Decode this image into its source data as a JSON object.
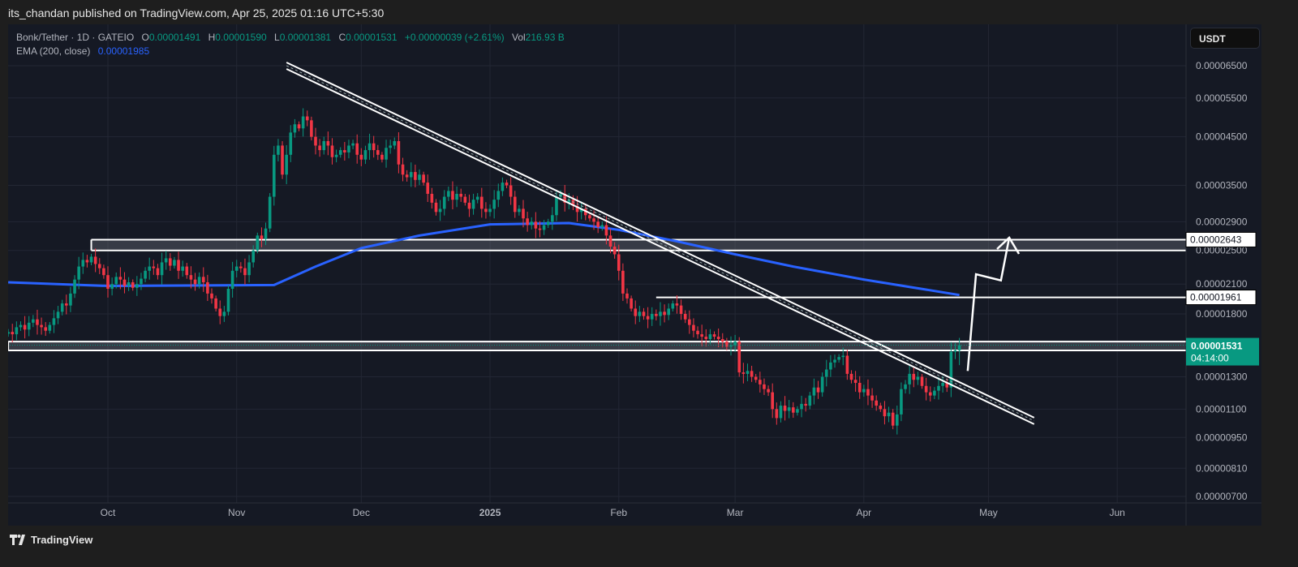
{
  "header": {
    "published": "its_chandan published on TradingView.com, Apr 25, 2025 01:16 UTC+5:30"
  },
  "legend": {
    "symbol": "Bonk/Tether · 1D · GATEIO",
    "o_label": "O",
    "o": "0.00001491",
    "h_label": "H",
    "h": "0.00001590",
    "l_label": "L",
    "l": "0.00001381",
    "c_label": "C",
    "c": "0.00001531",
    "change": "+0.00000039 (+2.61%)",
    "vol_label": "Vol",
    "vol": "216.93 B",
    "ema_label": "EMA (200, close)",
    "ema_value": "0.00001985"
  },
  "currency_button": "USDT",
  "footer": {
    "logo_text": "TradingView"
  },
  "colors": {
    "up": "#089981",
    "down": "#f23645",
    "ema": "#2962ff",
    "background": "#151924",
    "drawing": "#ffffff"
  },
  "chart_data": {
    "type": "candlestick",
    "title": "Bonk/Tether · 1D · GATEIO",
    "y_scale": "log",
    "ylim": [
      7e-06,
      6.75e-05
    ],
    "grid": true,
    "y_ticks": [
      "0.00006500",
      "0.00005500",
      "0.00004500",
      "0.00003500",
      "0.00002900",
      "0.00002500",
      "0.00002100",
      "0.00001800",
      "0.00001300",
      "0.00001100",
      "0.00000950",
      "0.00000810",
      "0.00000700"
    ],
    "x_ticks": [
      {
        "label": "Oct",
        "date": "2024-10-01"
      },
      {
        "label": "Nov",
        "date": "2024-11-01"
      },
      {
        "label": "Dec",
        "date": "2024-12-01"
      },
      {
        "label": "2025",
        "date": "2025-01-01",
        "bold": true
      },
      {
        "label": "Feb",
        "date": "2025-02-01"
      },
      {
        "label": "Mar",
        "date": "2025-03-01"
      },
      {
        "label": "Apr",
        "date": "2025-04-01"
      },
      {
        "label": "May",
        "date": "2025-05-01"
      },
      {
        "label": "Jun",
        "date": "2025-06-01"
      }
    ],
    "first_candle_date": "2024-09-07",
    "interval": "1D",
    "closes": [
      1.64e-05,
      1.62e-05,
      1.68e-05,
      1.7e-05,
      1.66e-05,
      1.72e-05,
      1.75e-05,
      1.7e-05,
      1.68e-05,
      1.65e-05,
      1.7e-05,
      1.76e-05,
      1.82e-05,
      1.9e-05,
      1.88e-05,
      2e-05,
      2.15e-05,
      2.3e-05,
      2.38e-05,
      2.35e-05,
      2.42e-05,
      2.33e-05,
      2.28e-05,
      2.2e-05,
      2.05e-05,
      2.1e-05,
      2.18e-05,
      2.15e-05,
      2.08e-05,
      2.12e-05,
      2.06e-05,
      2.1e-05,
      2.16e-05,
      2.25e-05,
      2.3e-05,
      2.28e-05,
      2.2e-05,
      2.35e-05,
      2.4e-05,
      2.31e-05,
      2.38e-05,
      2.25e-05,
      2.3e-05,
      2.2e-05,
      2.15e-05,
      2.1e-05,
      2.18e-05,
      2.12e-05,
      2e-05,
      1.95e-05,
      1.85e-05,
      1.78e-05,
      1.82e-05,
      2.05e-05,
      2.25e-05,
      2.3e-05,
      2.28e-05,
      2.2e-05,
      2.35e-05,
      2.5e-05,
      2.7e-05,
      2.65e-05,
      2.8e-05,
      3.3e-05,
      4.1e-05,
      4.3e-05,
      3.7e-05,
      4.1e-05,
      4.6e-05,
      4.8e-05,
      4.7e-05,
      5e-05,
      4.9e-05,
      4.5e-05,
      4.3e-05,
      4.2e-05,
      4.4e-05,
      4.3e-05,
      4.05e-05,
      4.1e-05,
      4.2e-05,
      4.15e-05,
      4.3e-05,
      4.35e-05,
      4.1e-05,
      4e-05,
      4.2e-05,
      4.35e-05,
      4.2e-05,
      4.1e-05,
      4e-05,
      4.25e-05,
      4.3e-05,
      4.4e-05,
      3.9e-05,
      3.7e-05,
      3.65e-05,
      3.75e-05,
      3.6e-05,
      3.7e-05,
      3.55e-05,
      3.35e-05,
      3.2e-05,
      3.05e-05,
      3.1e-05,
      3.3e-05,
      3.4e-05,
      3.25e-05,
      3.35e-05,
      3.3e-05,
      3.2e-05,
      3.1e-05,
      3.25e-05,
      3.3e-05,
      3.1e-05,
      3.05e-05,
      3.1e-05,
      3.25e-05,
      3.4e-05,
      3.55e-05,
      3.5e-05,
      3.3e-05,
      3.05e-05,
      3.1e-05,
      2.95e-05,
      2.85e-05,
      2.9e-05,
      2.8e-05,
      2.78e-05,
      2.85e-05,
      2.9e-05,
      3e-05,
      3.3e-05,
      3.35e-05,
      3.2e-05,
      3.25e-05,
      3.15e-05,
      3.05e-05,
      3.1e-05,
      3e-05,
      2.95e-05,
      2.9e-05,
      2.82e-05,
      2.85e-05,
      2.7e-05,
      2.55e-05,
      2.45e-05,
      2.25e-05,
      2e-05,
      1.95e-05,
      1.85e-05,
      1.78e-05,
      1.82e-05,
      1.78e-05,
      1.75e-05,
      1.8e-05,
      1.78e-05,
      1.82e-05,
      1.79e-05,
      1.85e-05,
      1.9e-05,
      1.88e-05,
      1.8e-05,
      1.75e-05,
      1.7e-05,
      1.65e-05,
      1.62e-05,
      1.6e-05,
      1.58e-05,
      1.62e-05,
      1.6e-05,
      1.58e-05,
      1.56e-05,
      1.52e-05,
      1.53e-05,
      1.56e-05,
      1.33e-05,
      1.32e-05,
      1.34e-05,
      1.3e-05,
      1.28e-05,
      1.25e-05,
      1.22e-05,
      1.2e-05,
      1.1e-05,
      1.05e-05,
      1.12e-05,
      1.09e-05,
      1.11e-05,
      1.08e-05,
      1.1e-05,
      1.13e-05,
      1.12e-05,
      1.18e-05,
      1.23e-05,
      1.2e-05,
      1.3e-05,
      1.35e-05,
      1.4e-05,
      1.42e-05,
      1.44e-05,
      1.45e-05,
      1.32e-05,
      1.28e-05,
      1.26e-05,
      1.2e-05,
      1.22e-05,
      1.18e-05,
      1.15e-05,
      1.12e-05,
      1.1e-05,
      1.06e-05,
      1.08e-05,
      1.01e-05,
      1.07e-05,
      1.22e-05,
      1.25e-05,
      1.32e-05,
      1.28e-05,
      1.3e-05,
      1.24e-05,
      1.2e-05,
      1.18e-05,
      1.21e-05,
      1.24e-05,
      1.26e-05,
      1.23e-05,
      1.48e-05,
      1.491e-05,
      1.531e-05
    ],
    "last_candle": {
      "open": 1.491e-05,
      "high": 1.59e-05,
      "low": 1.381e-05,
      "close": 1.531e-05
    },
    "ema_200": [
      {
        "date": "2024-09-07",
        "value": 2.12e-05
      },
      {
        "date": "2024-10-01",
        "value": 2.08e-05
      },
      {
        "date": "2024-11-10",
        "value": 2.09e-05
      },
      {
        "date": "2024-11-20",
        "value": 2.3e-05
      },
      {
        "date": "2024-12-01",
        "value": 2.53e-05
      },
      {
        "date": "2024-12-15",
        "value": 2.7e-05
      },
      {
        "date": "2025-01-01",
        "value": 2.86e-05
      },
      {
        "date": "2025-01-20",
        "value": 2.88e-05
      },
      {
        "date": "2025-02-01",
        "value": 2.78e-05
      },
      {
        "date": "2025-02-15",
        "value": 2.62e-05
      },
      {
        "date": "2025-03-01",
        "value": 2.45e-05
      },
      {
        "date": "2025-03-15",
        "value": 2.3e-05
      },
      {
        "date": "2025-04-01",
        "value": 2.15e-05
      },
      {
        "date": "2025-04-24",
        "value": 1.985e-05
      }
    ],
    "price_labels": [
      {
        "value": "0.00002643",
        "style": "drawing"
      },
      {
        "value": "0.00001961",
        "style": "drawing"
      },
      {
        "value": "0.00001531",
        "countdown": "04:14:00",
        "style": "current"
      }
    ],
    "drawings": {
      "resistance_zone": {
        "from": "2024-09-27",
        "low": 2.5e-05,
        "high": 2.643e-05
      },
      "resistance_line": {
        "from": "2025-02-10",
        "value": 1.961e-05
      },
      "support_zone": {
        "from": "2024-09-07",
        "low": 1.49e-05,
        "high": 1.56e-05
      },
      "downtrend_channel": {
        "start": {
          "date": "2024-11-13",
          "value": 6.5e-05
        },
        "end": {
          "date": "2025-05-12",
          "value": 1.035e-05
        }
      },
      "projection_arrow": [
        {
          "date": "2025-04-26",
          "value": 1.34e-05
        },
        {
          "date": "2025-04-28",
          "value": 2.21e-05
        },
        {
          "date": "2025-05-04",
          "value": 2.14e-05
        },
        {
          "date": "2025-05-06",
          "value": 2.67e-05
        }
      ]
    }
  }
}
